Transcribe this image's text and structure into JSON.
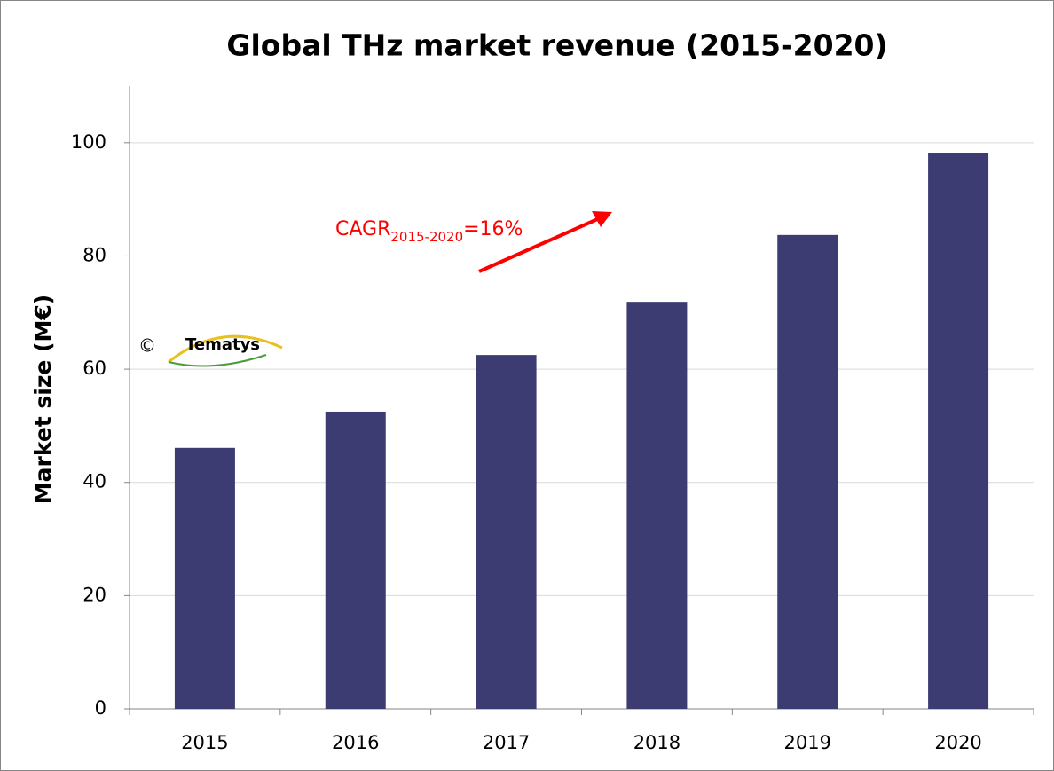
{
  "chart_data": {
    "type": "bar",
    "title": "Global THz market revenue (2015-2020)",
    "y_label": "Market size (M€)",
    "categories": [
      "2015",
      "2016",
      "2017",
      "2018",
      "2019",
      "2020"
    ],
    "values": [
      46.1,
      52.5,
      62.5,
      71.9,
      83.7,
      98.1
    ],
    "color": "#3c3c72",
    "ylim": [
      0,
      110
    ],
    "yticks": [
      0,
      20,
      40,
      60,
      80,
      100
    ],
    "grid": true,
    "annotation": {
      "main": "CAGR",
      "subscript": "2015-2020",
      "suffix": "=16%",
      "color": "#ff0000"
    },
    "logo": {
      "symbol": "©",
      "text": "Tematys"
    }
  }
}
